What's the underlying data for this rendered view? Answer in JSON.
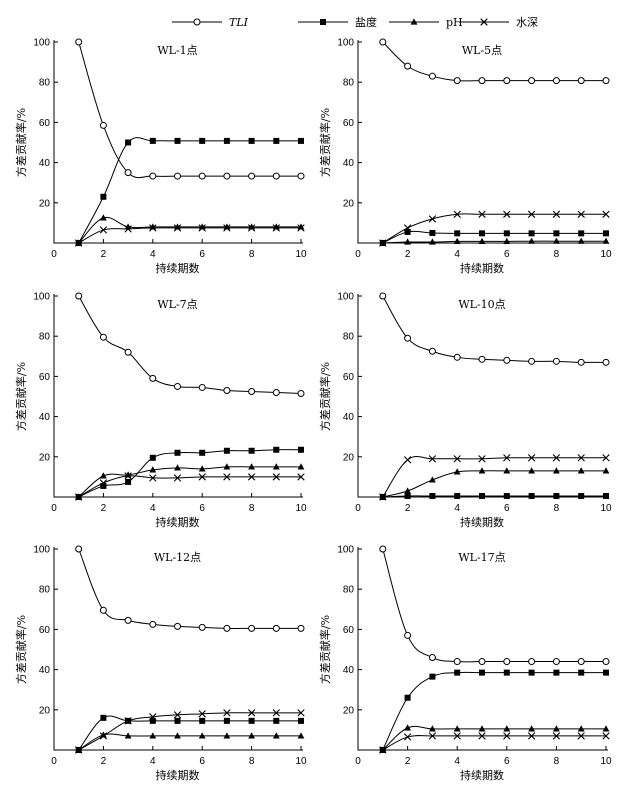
{
  "legend": {
    "entries": [
      {
        "label": "TLI",
        "marker": "circle",
        "italic": true
      },
      {
        "label": "盐度",
        "marker": "square",
        "italic": false
      },
      {
        "label": "pH",
        "marker": "triangle",
        "italic": false
      },
      {
        "label": "水深",
        "marker": "cross",
        "italic": false
      }
    ]
  },
  "chart_data": [
    {
      "type": "line",
      "title": "WL-1点",
      "xlabel": "持续期数",
      "ylabel": "方差贡献率/%",
      "xlim": [
        0,
        10
      ],
      "ylim": [
        0,
        100
      ],
      "x_ticks": [
        0,
        2,
        4,
        6,
        8,
        10
      ],
      "y_ticks": [
        20,
        40,
        60,
        80,
        100
      ],
      "x": [
        1,
        2,
        3,
        4,
        5,
        6,
        7,
        8,
        9,
        10
      ],
      "series": [
        {
          "name": "TLI",
          "values": [
            100,
            58.5,
            35,
            33.3,
            33.3,
            33.3,
            33.3,
            33.3,
            33.3,
            33.3
          ]
        },
        {
          "name": "盐度",
          "values": [
            0,
            23,
            50,
            50.8,
            50.8,
            50.8,
            50.8,
            50.8,
            50.8,
            50.8
          ]
        },
        {
          "name": "pH",
          "values": [
            0,
            12.5,
            8,
            8,
            8,
            8,
            8,
            8,
            8,
            8
          ]
        },
        {
          "name": "水深",
          "values": [
            0,
            6.5,
            7,
            7.5,
            7.5,
            7.5,
            7.5,
            7.5,
            7.5,
            7.5
          ]
        }
      ]
    },
    {
      "type": "line",
      "title": "WL-5点",
      "xlabel": "持续期数",
      "ylabel": "方差贡献率/%",
      "xlim": [
        0,
        10
      ],
      "ylim": [
        0,
        100
      ],
      "x_ticks": [
        0,
        2,
        4,
        6,
        8,
        10
      ],
      "y_ticks": [
        20,
        40,
        60,
        80,
        100
      ],
      "x": [
        1,
        2,
        3,
        4,
        5,
        6,
        7,
        8,
        9,
        10
      ],
      "series": [
        {
          "name": "TLI",
          "values": [
            100,
            88,
            83,
            80.8,
            80.8,
            80.8,
            80.8,
            80.8,
            80.8,
            80.8
          ]
        },
        {
          "name": "盐度",
          "values": [
            0,
            5.5,
            5,
            4.8,
            4.8,
            4.8,
            4.8,
            4.8,
            4.8,
            4.8
          ]
        },
        {
          "name": "pH",
          "values": [
            0,
            0.5,
            0.5,
            0.8,
            0.8,
            0.8,
            0.9,
            0.9,
            0.9,
            0.9
          ]
        },
        {
          "name": "水深",
          "values": [
            0,
            7.5,
            12,
            14.3,
            14.3,
            14.3,
            14.3,
            14.3,
            14.3,
            14.3
          ]
        }
      ]
    },
    {
      "type": "line",
      "title": "WL-7点",
      "xlabel": "持续期数",
      "ylabel": "方差贡献率/%",
      "xlim": [
        0,
        10
      ],
      "ylim": [
        0,
        100
      ],
      "x_ticks": [
        0,
        2,
        4,
        6,
        8,
        10
      ],
      "y_ticks": [
        20,
        40,
        60,
        80,
        100
      ],
      "x": [
        1,
        2,
        3,
        4,
        5,
        6,
        7,
        8,
        9,
        10
      ],
      "series": [
        {
          "name": "TLI",
          "values": [
            100,
            79.5,
            72,
            59,
            55,
            54.5,
            53,
            52.5,
            52,
            51.5
          ]
        },
        {
          "name": "盐度",
          "values": [
            0,
            5.5,
            7.5,
            19.5,
            22,
            22,
            23,
            23,
            23.5,
            23.5
          ]
        },
        {
          "name": "pH",
          "values": [
            0,
            10.5,
            11,
            13.5,
            14.5,
            14,
            15,
            15,
            15,
            15
          ]
        },
        {
          "name": "水深",
          "values": [
            0,
            7,
            10.5,
            9.5,
            9.5,
            10,
            10,
            10,
            10,
            10
          ]
        }
      ]
    },
    {
      "type": "line",
      "title": "WL-10点",
      "xlabel": "持续期数",
      "ylabel": "方差贡献率/%",
      "xlim": [
        0,
        10
      ],
      "ylim": [
        0,
        100
      ],
      "x_ticks": [
        0,
        2,
        4,
        6,
        8,
        10
      ],
      "y_ticks": [
        20,
        40,
        60,
        80,
        100
      ],
      "x": [
        1,
        2,
        3,
        4,
        5,
        6,
        7,
        8,
        9,
        10
      ],
      "series": [
        {
          "name": "TLI",
          "values": [
            100,
            79,
            72.5,
            69.5,
            68.5,
            68,
            67.5,
            67.5,
            67,
            67
          ]
        },
        {
          "name": "盐度",
          "values": [
            0,
            0.5,
            0.5,
            0.5,
            0.5,
            0.5,
            0.5,
            0.5,
            0.5,
            0.5
          ]
        },
        {
          "name": "pH",
          "values": [
            0,
            3,
            8.5,
            12.5,
            13,
            13,
            13,
            13,
            13,
            13
          ]
        },
        {
          "name": "水深",
          "values": [
            0,
            18.5,
            19,
            19,
            19,
            19.5,
            19.5,
            19.5,
            19.5,
            19.5
          ]
        }
      ]
    },
    {
      "type": "line",
      "title": "WL-12点",
      "xlabel": "持续期数",
      "ylabel": "方差贡献率/%",
      "xlim": [
        0,
        10
      ],
      "ylim": [
        0,
        100
      ],
      "x_ticks": [
        0,
        2,
        4,
        6,
        8,
        10
      ],
      "y_ticks": [
        20,
        40,
        60,
        80,
        100
      ],
      "x": [
        1,
        2,
        3,
        4,
        5,
        6,
        7,
        8,
        9,
        10
      ],
      "series": [
        {
          "name": "TLI",
          "values": [
            100,
            69.5,
            64.5,
            62.5,
            61.5,
            61,
            60.5,
            60.5,
            60.5,
            60.5
          ]
        },
        {
          "name": "盐度",
          "values": [
            0,
            16,
            14.5,
            14.5,
            14.5,
            14.5,
            14.5,
            14.5,
            14.5,
            14.5
          ]
        },
        {
          "name": "pH",
          "values": [
            0,
            7.5,
            7,
            7,
            7,
            7,
            7,
            7,
            7,
            7
          ]
        },
        {
          "name": "水深",
          "values": [
            0,
            7,
            14.5,
            16.5,
            17.5,
            18,
            18.5,
            18.5,
            18.5,
            18.5
          ]
        }
      ]
    },
    {
      "type": "line",
      "title": "WL-17点",
      "xlabel": "持续期数",
      "ylabel": "方差贡献率/%",
      "xlim": [
        0,
        10
      ],
      "ylim": [
        0,
        100
      ],
      "x_ticks": [
        0,
        2,
        4,
        6,
        8,
        10
      ],
      "y_ticks": [
        20,
        40,
        60,
        80,
        100
      ],
      "x": [
        1,
        2,
        3,
        4,
        5,
        6,
        7,
        8,
        9,
        10
      ],
      "series": [
        {
          "name": "TLI",
          "values": [
            100,
            57,
            46,
            44,
            44,
            44,
            44,
            44,
            44,
            44
          ]
        },
        {
          "name": "盐度",
          "values": [
            0,
            26,
            36.5,
            38.5,
            38.5,
            38.5,
            38.5,
            38.5,
            38.5,
            38.5
          ]
        },
        {
          "name": "pH",
          "values": [
            0,
            11,
            10.5,
            10.5,
            10.5,
            10.5,
            10.5,
            10.5,
            10.5,
            10.5
          ]
        },
        {
          "name": "水深",
          "values": [
            0,
            6.5,
            7,
            7,
            7,
            7,
            7,
            7,
            7,
            7
          ]
        }
      ]
    }
  ]
}
